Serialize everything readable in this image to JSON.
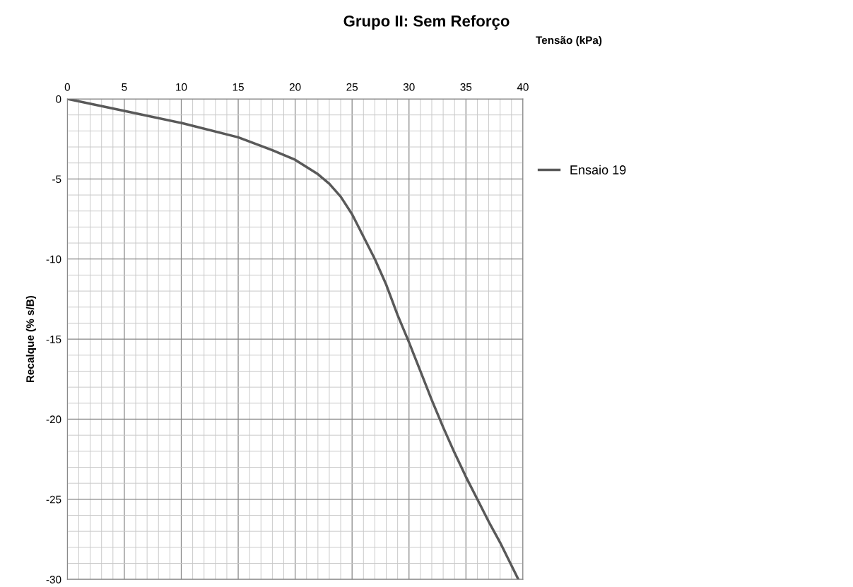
{
  "chart_data": {
    "type": "line",
    "title": "Grupo II: Sem Reforço",
    "xlabel": "Tensão (kPa)",
    "ylabel": "Recalque (% s/B)",
    "x": [
      0,
      5,
      10,
      15,
      18,
      20,
      22,
      23,
      24,
      25,
      26,
      27,
      28,
      29,
      30,
      31,
      32,
      33,
      34,
      35,
      36,
      37,
      38,
      39.6
    ],
    "series": [
      {
        "name": "Ensaio 19",
        "color": "#595959",
        "values": [
          0,
          -0.75,
          -1.5,
          -2.4,
          -3.2,
          -3.8,
          -4.7,
          -5.3,
          -6.1,
          -7.2,
          -8.6,
          -10,
          -11.6,
          -13.5,
          -15.2,
          -17,
          -18.8,
          -20.5,
          -22.1,
          -23.6,
          -25,
          -26.4,
          -27.7,
          -30
        ]
      }
    ],
    "xlim": [
      0,
      40
    ],
    "ylim": [
      -30,
      0
    ],
    "xticks": [
      0,
      {
        "value": 1,
        "label": null
      },
      {
        "value": 2,
        "label": null
      },
      {
        "value": 3,
        "label": null
      },
      {
        "value": 4,
        "label": null
      },
      5,
      {
        "value": 6,
        "label": null
      },
      {
        "value": 7,
        "label": null
      },
      {
        "value": 8,
        "label": null
      },
      {
        "value": 9,
        "label": null
      },
      10,
      {
        "value": 11,
        "label": null
      },
      {
        "value": 12,
        "label": null
      },
      {
        "value": 13,
        "label": null
      },
      {
        "value": 14,
        "label": null
      },
      15,
      {
        "value": 16,
        "label": null
      },
      {
        "value": 17,
        "label": null
      },
      {
        "value": 18,
        "label": null
      },
      {
        "value": 19,
        "label": null
      },
      20,
      {
        "value": 21,
        "label": null
      },
      {
        "value": 22,
        "label": null
      },
      {
        "value": 23,
        "label": null
      },
      {
        "value": 24,
        "label": null
      },
      25,
      {
        "value": 26,
        "label": null
      },
      {
        "value": 27,
        "label": null
      },
      {
        "value": 28,
        "label": null
      },
      {
        "value": 29,
        "label": null
      },
      30,
      {
        "value": 31,
        "label": null
      },
      {
        "value": 32,
        "label": null
      },
      {
        "value": 33,
        "label": null
      },
      {
        "value": 34,
        "label": null
      },
      35,
      {
        "value": 36,
        "label": null
      },
      {
        "value": 37,
        "label": null
      },
      {
        "value": 38,
        "label": null
      },
      {
        "value": 39,
        "label": null
      },
      40
    ],
    "yticks": [
      0,
      {
        "value": -1,
        "label": null
      },
      {
        "value": -2,
        "label": null
      },
      {
        "value": -3,
        "label": null
      },
      {
        "value": -4,
        "label": null
      },
      -5,
      {
        "value": -6,
        "label": null
      },
      {
        "value": -7,
        "label": null
      },
      {
        "value": -8,
        "label": null
      },
      {
        "value": -9,
        "label": null
      },
      -10,
      {
        "value": -11,
        "label": null
      },
      {
        "value": -12,
        "label": null
      },
      {
        "value": -13,
        "label": null
      },
      {
        "value": -14,
        "label": null
      },
      -15,
      {
        "value": -16,
        "label": null
      },
      {
        "value": -17,
        "label": null
      },
      {
        "value": -18,
        "label": null
      },
      {
        "value": -19,
        "label": null
      },
      -20,
      {
        "value": -21,
        "label": null
      },
      {
        "value": -22,
        "label": null
      },
      {
        "value": -23,
        "label": null
      },
      {
        "value": -24,
        "label": null
      },
      -25,
      {
        "value": -26,
        "label": null
      },
      {
        "value": -27,
        "label": null
      },
      {
        "value": -28,
        "label": null
      },
      {
        "value": -29,
        "label": null
      },
      -30
    ],
    "grid": true,
    "legend": "right",
    "marker": "none",
    "line_style": "solid"
  }
}
